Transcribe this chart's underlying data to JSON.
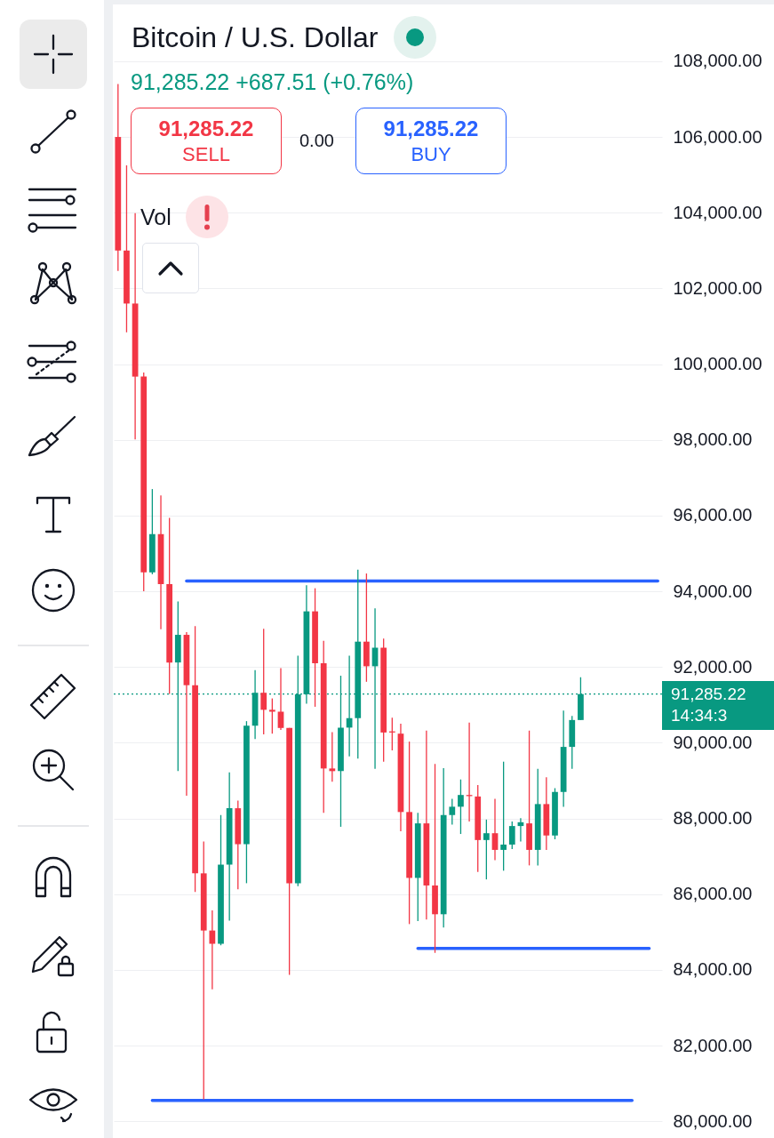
{
  "chart_data": {
    "type": "candlestick",
    "title": "Bitcoin / U.S. Dollar",
    "subtitle": "91,285.22 +687.51 (+0.76%)",
    "categories": [
      null,
      null,
      null,
      null,
      null,
      null,
      null,
      null,
      null,
      null,
      null,
      null,
      null,
      null,
      null,
      null,
      null,
      null,
      null,
      null,
      null,
      null,
      null,
      null,
      null,
      null,
      null,
      null,
      null,
      null,
      null,
      null,
      null,
      null,
      null,
      null,
      null,
      null,
      null,
      null,
      null,
      null,
      null,
      null,
      null,
      null,
      null,
      null,
      null,
      null,
      null,
      null,
      null,
      null,
      null,
      null,
      null,
      null,
      null,
      null,
      null,
      null,
      null,
      null
    ],
    "ohlc": [
      [
        106000,
        107400,
        102460,
        103000
      ],
      [
        103000,
        105250,
        100840,
        101600
      ],
      [
        101600,
        103990,
        98010,
        99670
      ],
      [
        99670,
        99780,
        94000,
        94500
      ],
      [
        94500,
        96700,
        94450,
        95510
      ],
      [
        95510,
        96530,
        93000,
        94190
      ],
      [
        94190,
        95940,
        91290,
        92120
      ],
      [
        92120,
        93730,
        89250,
        92850
      ],
      [
        92850,
        92920,
        88600,
        91520
      ],
      [
        91520,
        93080,
        86060,
        86550
      ],
      [
        86550,
        87390,
        80580,
        85040
      ],
      [
        85040,
        85570,
        83490,
        84690
      ],
      [
        84690,
        88090,
        84650,
        86780
      ],
      [
        86780,
        89220,
        85300,
        88270
      ],
      [
        88270,
        88470,
        86130,
        87320
      ],
      [
        87320,
        90570,
        86290,
        90450
      ],
      [
        90450,
        91920,
        90100,
        91320
      ],
      [
        91320,
        93010,
        90220,
        90870
      ],
      [
        90870,
        91170,
        90240,
        90820
      ],
      [
        90820,
        91970,
        90340,
        90390
      ],
      [
        90390,
        90390,
        83870,
        86290
      ],
      [
        86290,
        92300,
        86210,
        91280
      ],
      [
        91280,
        94160,
        91030,
        93470
      ],
      [
        93470,
        94080,
        90950,
        92100
      ],
      [
        92100,
        92690,
        88150,
        89320
      ],
      [
        89320,
        90280,
        88970,
        89250
      ],
      [
        89250,
        91770,
        87780,
        90400
      ],
      [
        90400,
        92300,
        89640,
        90650
      ],
      [
        90650,
        94570,
        89580,
        92670
      ],
      [
        92670,
        94470,
        91610,
        92020
      ],
      [
        92020,
        93550,
        89310,
        92510
      ],
      [
        92510,
        92750,
        89500,
        90270
      ],
      [
        90300,
        90660,
        89800,
        90270
      ],
      [
        90240,
        90500,
        87660,
        88170
      ],
      [
        88170,
        90030,
        85210,
        86430
      ],
      [
        86430,
        88150,
        85290,
        87870
      ],
      [
        87870,
        90320,
        85330,
        86230
      ],
      [
        86230,
        89440,
        84450,
        85470
      ],
      [
        85470,
        89330,
        85120,
        88090
      ],
      [
        88090,
        88520,
        87840,
        88310
      ],
      [
        88310,
        89030,
        87590,
        88620
      ],
      [
        88620,
        90530,
        87920,
        88590
      ],
      [
        88580,
        88880,
        86590,
        87430
      ],
      [
        87430,
        87970,
        86390,
        87610
      ],
      [
        87610,
        88520,
        86900,
        87170
      ],
      [
        87170,
        89500,
        86620,
        87310
      ],
      [
        87310,
        87920,
        87190,
        87800
      ],
      [
        87800,
        88010,
        87390,
        87900
      ],
      [
        87870,
        90320,
        86760,
        87170
      ],
      [
        87170,
        89310,
        86760,
        88380
      ],
      [
        88380,
        89090,
        87170,
        87550
      ],
      [
        87550,
        88800,
        87450,
        88700
      ],
      [
        88700,
        90850,
        88310,
        89890
      ],
      [
        89890,
        90710,
        89310,
        90600
      ],
      [
        90600,
        91730,
        90600,
        91285.22
      ],
      null,
      null,
      null,
      null,
      null,
      null,
      null,
      null,
      null
    ],
    "colors": [
      "#f23645",
      "#f23645",
      "#f23645",
      "#f23645",
      "#089981",
      "#f23645",
      "#f23645",
      "#089981",
      "#f23645",
      "#f23645",
      "#f23645",
      "#f23645",
      "#089981",
      "#089981",
      "#f23645",
      "#089981",
      "#089981",
      "#f23645",
      "#f23645",
      "#f23645",
      "#f23645",
      "#089981",
      "#089981",
      "#f23645",
      "#f23645",
      "#f23645",
      "#089981",
      "#089981",
      "#089981",
      "#f23645",
      "#089981",
      "#f23645",
      "#f23645",
      "#f23645",
      "#f23645",
      "#089981",
      "#f23645",
      "#f23645",
      "#089981",
      "#089981",
      "#089981",
      "#f23645",
      "#f23645",
      "#089981",
      "#f23645",
      "#089981",
      "#089981",
      "#089981",
      "#f23645",
      "#089981",
      "#f23645",
      "#089981",
      "#089981",
      "#089981",
      "#089981",
      null,
      null,
      null,
      null,
      null,
      null,
      null,
      null,
      null
    ],
    "series": [
      {
        "type": "line",
        "color": "#2962ff",
        "values": [
          null,
          null,
          null,
          null,
          null,
          null,
          null,
          null,
          94270,
          94270,
          94270,
          94270,
          94270,
          94270,
          94270,
          94270,
          94270,
          94270,
          94270,
          94270,
          94270,
          94270,
          94270,
          94270,
          94270,
          94270,
          94270,
          94270,
          94270,
          94270,
          94270,
          94270,
          94270,
          94270,
          94270,
          94270,
          94270,
          94270,
          94270,
          94270,
          94270,
          94270,
          94270,
          94270,
          94270,
          94270,
          94270,
          94270,
          94270,
          94270,
          94270,
          94270,
          94270,
          94270,
          94270,
          94270,
          94270,
          94270,
          94270,
          94270,
          94270,
          94270,
          94270,
          94270
        ]
      },
      {
        "type": "line",
        "color": "#2962ff",
        "values": [
          null,
          null,
          null,
          null,
          null,
          null,
          null,
          null,
          null,
          null,
          null,
          null,
          null,
          null,
          null,
          null,
          null,
          null,
          null,
          null,
          null,
          null,
          null,
          null,
          null,
          null,
          null,
          null,
          null,
          null,
          null,
          null,
          null,
          null,
          null,
          84570,
          84570,
          84570,
          84570,
          84570,
          84570,
          84570,
          84570,
          84570,
          84570,
          84570,
          84570,
          84570,
          84570,
          84570,
          84570,
          84570,
          84570,
          84570,
          84570,
          84570,
          84570,
          84570,
          84570,
          84570,
          84570,
          84570,
          84570,
          null
        ]
      },
      {
        "type": "line",
        "color": "#2962ff",
        "values": [
          null,
          null,
          null,
          null,
          80550,
          80550,
          80550,
          80550,
          80550,
          80550,
          80550,
          80550,
          80550,
          80550,
          80550,
          80550,
          80550,
          80550,
          80550,
          80550,
          80550,
          80550,
          80550,
          80550,
          80550,
          80550,
          80550,
          80550,
          80550,
          80550,
          80550,
          80550,
          80550,
          80550,
          80550,
          80550,
          80550,
          80550,
          80550,
          80550,
          80550,
          80550,
          80550,
          80550,
          80550,
          80550,
          80550,
          80550,
          80550,
          80550,
          80550,
          80550,
          80550,
          80550,
          80550,
          80550,
          80550,
          80550,
          80550,
          80550,
          80550,
          null,
          null,
          null
        ]
      }
    ],
    "ylim": [
      79560,
      109500
    ],
    "yticks": [
      {
        "value": 80000,
        "label": "80,000.00"
      },
      {
        "value": 82000,
        "label": "82,000.00"
      },
      {
        "value": 84000,
        "label": "84,000.00"
      },
      {
        "value": 86000,
        "label": "86,000.00"
      },
      {
        "value": 88000,
        "label": "88,000.00"
      },
      {
        "value": 90000,
        "label": "90,000.00"
      },
      {
        "value": 92000,
        "label": "92,000.00"
      },
      {
        "value": 94000,
        "label": "94,000.00"
      },
      {
        "value": 96000,
        "label": "96,000.00"
      },
      {
        "value": 98000,
        "label": "98,000.00"
      },
      {
        "value": 100000,
        "label": "100,000.00"
      },
      {
        "value": 102000,
        "label": "102,000.00"
      },
      {
        "value": 104000,
        "label": "104,000.00"
      },
      {
        "value": 106000,
        "label": "106,000.00"
      },
      {
        "value": 108000,
        "label": "108,000.00"
      }
    ],
    "grid": "y",
    "tick_labels": "y",
    "ref_lines": [
      {
        "axis": "y",
        "value": 91285.22,
        "label": "91,285.22",
        "color": "#089981",
        "line_style": "dotted"
      }
    ],
    "annotations": [
      "91,285.22",
      "SELL",
      "0.00",
      "91,285.22",
      "BUY",
      "Vol",
      "14:34:3"
    ]
  }
}
